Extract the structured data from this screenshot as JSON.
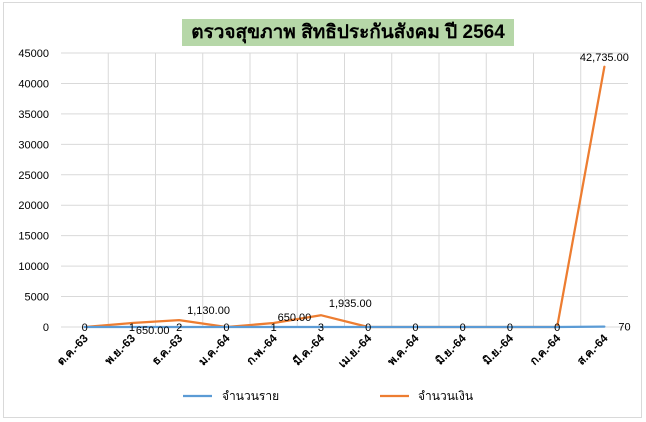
{
  "chart_data": {
    "type": "line",
    "title": "ตรวจสุขภาพ สิทธิประกันสังคม ปี 2564",
    "categories": [
      "ต.ค.-63",
      "พ.ย.-63",
      "ธ.ค.-63",
      "ม.ค.-64",
      "ก.พ.-64",
      "มี.ค.-64",
      "เม.ย.-64",
      "พ.ค.-64",
      "มิ.ย.-64",
      "มิ.ย.-64",
      "ก.ค.-64",
      "ส.ค.-64"
    ],
    "ylim": [
      0,
      45000
    ],
    "yticks": [
      "0",
      "5000",
      "10000",
      "15000",
      "20000",
      "25000",
      "30000",
      "35000",
      "40000",
      "45000"
    ],
    "grid": true,
    "legend_position": "bottom",
    "series": [
      {
        "name": "จำนวนราย",
        "color": "#5b9bd5",
        "values": [
          0,
          1,
          2,
          0,
          1,
          3,
          0,
          0,
          0,
          0,
          0,
          70
        ],
        "labels": [
          "0",
          "1",
          "2",
          "0",
          "1",
          "3",
          "0",
          "0",
          "0",
          "0",
          "0",
          "70"
        ]
      },
      {
        "name": "จำนวนเงิน",
        "color": "#ed7d31",
        "values": [
          0,
          650,
          1130,
          0,
          650,
          1935,
          0,
          0,
          0,
          0,
          0,
          42735
        ],
        "labels": [
          "",
          "650.00",
          "1,130.00",
          "",
          "650.00",
          "1,935.00",
          "",
          "",
          "",
          "",
          "",
          "42,735.00"
        ]
      }
    ]
  }
}
